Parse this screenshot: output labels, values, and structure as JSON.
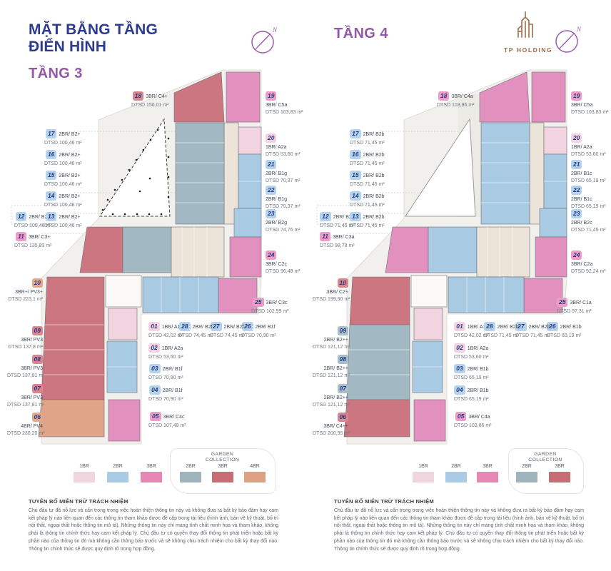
{
  "compass_label": "N",
  "left_panel": {
    "title_line1": "MẶT BẰNG TẦNG",
    "title_line2": "ĐIỂN HÌNH",
    "floor_label": "TẦNG 3",
    "units": [
      {
        "id": "01",
        "type": "1BR/ A1a",
        "dtsd": "DTSD 42,02 m²"
      },
      {
        "id": "02",
        "type": "1BR/ A2a",
        "dtsd": "DTSD 53,60 m²"
      },
      {
        "id": "03",
        "type": "2BR/ B1f",
        "dtsd": "DTSD 70,90 m²"
      },
      {
        "id": "04",
        "type": "2BR/ B1f",
        "dtsd": "DTSD 70,90 m²"
      },
      {
        "id": "05",
        "type": "3BR/ C4c",
        "dtsd": "DTSD 107,48 m²"
      },
      {
        "id": "06",
        "type": "4BR/ PV4",
        "dtsd": "DTSD 230,20 m²"
      },
      {
        "id": "07",
        "type": "3BR/ PV3",
        "dtsd": "DTSD 137,81 m²"
      },
      {
        "id": "08",
        "type": "3BR/ PV3",
        "dtsd": "DTSD 137,81 m²"
      },
      {
        "id": "09",
        "type": "3BR/ PV3",
        "dtsd": "DTSD 137,8 m²"
      },
      {
        "id": "10",
        "type": "3BR+/ PV3+",
        "dtsd": "DTSD 223,1 m²"
      },
      {
        "id": "11",
        "type": "3BR/ C3+",
        "dtsd": "DTSD 135,83 m²"
      },
      {
        "id": "12",
        "type": "2BR/ B2+",
        "dtsd": "DTSD 100,46 m²"
      },
      {
        "id": "13",
        "type": "2BR/ B2+",
        "dtsd": "DTSD 100,46 m²"
      },
      {
        "id": "14",
        "type": "2BR/ B2+",
        "dtsd": "DTSD 100,46 m²"
      },
      {
        "id": "15",
        "type": "2BR/ B2+",
        "dtsd": "DTSD 100,46 m²"
      },
      {
        "id": "16",
        "type": "2BR/ B2+",
        "dtsd": "DTSD 100,46 m²"
      },
      {
        "id": "17",
        "type": "2BR/ B2+",
        "dtsd": "DTSD 100,46 m²"
      },
      {
        "id": "18",
        "type": "3BR/ C4+",
        "dtsd": "DTSD 156,01 m²"
      },
      {
        "id": "19",
        "type": "3BR/ C5a",
        "dtsd": "DTSD 103,83 m²"
      },
      {
        "id": "20",
        "type": "1BR/ A2a",
        "dtsd": "DTSD 53,60 m²"
      },
      {
        "id": "21",
        "type": "2BR/ B1g",
        "dtsd": "DTSD 70,37 m²"
      },
      {
        "id": "22",
        "type": "2BR/ B1g",
        "dtsd": "DTSD 70,37 m²"
      },
      {
        "id": "23",
        "type": "2BR/ B2g",
        "dtsd": "DTSD 74,76 m²"
      },
      {
        "id": "24",
        "type": "3BR/ C2c",
        "dtsd": "DTSD 96,48 m²"
      },
      {
        "id": "25",
        "type": "3BR/ C3c",
        "dtsd": "DTSD 102,99 m²"
      },
      {
        "id": "26",
        "type": "2BR/ B1f",
        "dtsd": "DTSD 70,90 m²"
      },
      {
        "id": "27",
        "type": "2BR/ B2f",
        "dtsd": "DTSD 74,45 m²"
      },
      {
        "id": "28",
        "type": "2BR/ B2f",
        "dtsd": "DTSD 74,45 m²"
      }
    ],
    "legend": {
      "items": [
        {
          "label": "1BR",
          "color": "#f0d5e0"
        },
        {
          "label": "2BR",
          "color": "#a9cbe5"
        },
        {
          "label": "3BR",
          "color": "#e687b5"
        }
      ],
      "garden_title": "GARDEN COLLECTION",
      "garden_items": [
        {
          "label": "2BR",
          "color": "#9fb4bd"
        },
        {
          "label": "3BR",
          "color": "#c76d73"
        },
        {
          "label": "4BR",
          "color": "#dfa183"
        }
      ]
    }
  },
  "right_panel": {
    "floor_label": "TẦNG 4",
    "brand": "TP HOLDING",
    "units": [
      {
        "id": "01",
        "type": "1BR/ A1a",
        "dtsd": "DTSD 42,02 m²"
      },
      {
        "id": "02",
        "type": "1BR/ A2a",
        "dtsd": "DTSD 53,60 m²"
      },
      {
        "id": "03",
        "type": "2BR/ B1b",
        "dtsd": "DTSD 65,19 m²"
      },
      {
        "id": "04",
        "type": "2BR/ B1b",
        "dtsd": "DTSD 65,19 m²"
      },
      {
        "id": "05",
        "type": "3BR/ C4a",
        "dtsd": "DTSD 103,86 m²"
      },
      {
        "id": "06",
        "type": "3BR/ C4++",
        "dtsd": "DTSD 200,95 m²"
      },
      {
        "id": "07",
        "type": "2BR/ B2++",
        "dtsd": "DTSD 121,12 m²"
      },
      {
        "id": "08",
        "type": "2BR/ B2++",
        "dtsd": "DTSD 121,12 m²"
      },
      {
        "id": "09",
        "type": "2BR/ B2++",
        "dtsd": "DTSD 121,12 m²"
      },
      {
        "id": "10",
        "type": "3BR/ C2+",
        "dtsd": "DTSD 199,90 m²"
      },
      {
        "id": "11",
        "type": "3BR/ C3a",
        "dtsd": "DTSD 98,78 m²"
      },
      {
        "id": "12",
        "type": "2BR/ B2c",
        "dtsd": "DTSD 71,45 m²"
      },
      {
        "id": "13",
        "type": "2BR/ B2b",
        "dtsd": "DTSD 71,45 m²"
      },
      {
        "id": "14",
        "type": "2BR/ B2b",
        "dtsd": "DTSD 71,45 m²"
      },
      {
        "id": "15",
        "type": "2BR/ B2b",
        "dtsd": "DTSD 71,45 m²"
      },
      {
        "id": "16",
        "type": "2BR/ B2b",
        "dtsd": "DTSD 71,45 m²"
      },
      {
        "id": "17",
        "type": "2BR/ B2b",
        "dtsd": "DTSD 71,45 m²"
      },
      {
        "id": "18",
        "type": "3BR/ C4a",
        "dtsd": "DTSD 103,86 m²"
      },
      {
        "id": "19",
        "type": "3BR/ C5a",
        "dtsd": "DTSD 103,83 m²"
      },
      {
        "id": "20",
        "type": "1BR/ A2a",
        "dtsd": "DTSD 53,60 m²"
      },
      {
        "id": "21",
        "type": "2BR/ B1c",
        "dtsd": "DTSD 65,19 m²"
      },
      {
        "id": "22",
        "type": "2BR/ B1c",
        "dtsd": "DTSD 65,19 m²"
      },
      {
        "id": "23",
        "type": "2BR/ B2c",
        "dtsd": "DTSD 71,45 m²"
      },
      {
        "id": "24",
        "type": "3BR/ C2a",
        "dtsd": "DTSD 92,24 m²"
      },
      {
        "id": "25",
        "type": "3BR/ C1a",
        "dtsd": "DTSD 97,31 m²"
      },
      {
        "id": "26",
        "type": "2BR/ B1b",
        "dtsd": "DTSD 65,19 m²"
      },
      {
        "id": "27",
        "type": "2BR/ B2b",
        "dtsd": "DTSD 71,45 m²"
      },
      {
        "id": "28",
        "type": "2BR/ B2b",
        "dtsd": "DTSD 71,45 m²"
      }
    ],
    "legend": {
      "items": [
        {
          "label": "1BR",
          "color": "#f0d5e0"
        },
        {
          "label": "2BR",
          "color": "#a9cbe5"
        },
        {
          "label": "3BR",
          "color": "#e687b5"
        }
      ],
      "garden_title": "GARDEN COLLECTION",
      "garden_items": [
        {
          "label": "2BR",
          "color": "#9fb4bd"
        },
        {
          "label": "3BR",
          "color": "#c76d73"
        }
      ]
    }
  },
  "disclaimer": {
    "title": "TUYÊN BỐ MIỄN TRỪ TRÁCH NHIỆM",
    "body": "Chủ đầu tư đã nỗ lực và cẩn trọng trong việc hoàn thiện thông tin này và không đưa ra bất kỳ bảo đảm hay cam kết pháp lý nào liên quan đến các thông tin tham khảo được đề cập trong tài liệu (hình ảnh, bản vẽ kỹ thuật, bố trí nội thất, ngoại thất hoặc thông tin mô tả). Những thông tin này chỉ mang tính chất minh họa và tham khảo, không phải là thông tin chính thức hay cam kết pháp lý. Chủ đầu tư có quyền thay đổi thông tin phát triển hoặc bất kỳ phần nào của thông tin đó mà không cần thông báo trước và sẽ không chịu trách nhiệm cho bất kỳ thay đổi nào. Thông tin chính thức sẽ được quy định rõ trong hợp đồng."
  }
}
